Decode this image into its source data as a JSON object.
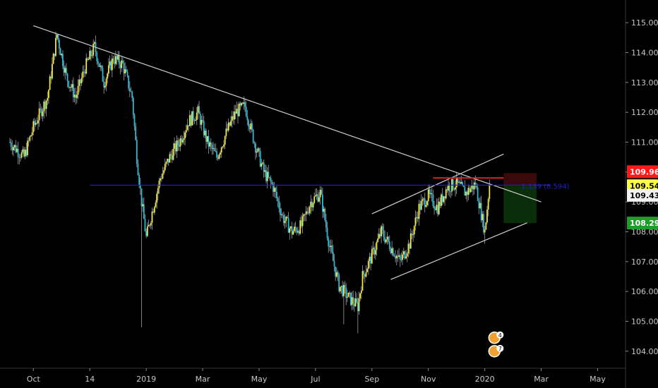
{
  "colors": {
    "background": "#000000",
    "candle_up": "#f5e642",
    "candle_down": "#2fb8d6",
    "wick": "#9aa0a6",
    "trendline": "#d0d0d0",
    "level_line": "#2020c8",
    "resistance_line": "#e02020",
    "stop_zone": "#3a0a0a",
    "target_zone": "#0a2e0a",
    "badge_red": "#ff1a1a",
    "badge_yellow": "#ffff44",
    "badge_white": "#f2f2f2",
    "badge_green": "#1f9d2a",
    "event_icon": "#f0a030"
  },
  "chart_data": {
    "type": "candlestick",
    "y_axis": {
      "min": 103.5,
      "max": 115.5,
      "ticks": [
        "115.000",
        "114.000",
        "113.000",
        "112.000",
        "111.000",
        "110.000",
        "109.000",
        "108.000",
        "107.000",
        "106.000",
        "105.000",
        "104.000"
      ],
      "tick_values": [
        115,
        114,
        113,
        112,
        111,
        110,
        109,
        108,
        107,
        106,
        105,
        104
      ]
    },
    "x_axis": {
      "labels": [
        "Oct",
        "14",
        "2019",
        "Mar",
        "May",
        "Jul",
        "Sep",
        "Nov",
        "2020",
        "Mar",
        "May"
      ],
      "label_index": [
        5,
        17,
        29,
        41,
        53,
        65,
        77,
        89,
        101,
        113,
        125
      ]
    },
    "price_path": [
      [
        0,
        111.0
      ],
      [
        3,
        110.5
      ],
      [
        5,
        111.5
      ],
      [
        8,
        112.5
      ],
      [
        10,
        114.6
      ],
      [
        12,
        113.2
      ],
      [
        14,
        112.5
      ],
      [
        16,
        113.5
      ],
      [
        18,
        114.2
      ],
      [
        20,
        113.0
      ],
      [
        22,
        113.8
      ],
      [
        24,
        113.6
      ],
      [
        26,
        112.5
      ],
      [
        27,
        110.5
      ],
      [
        28,
        109.0
      ],
      [
        29,
        107.8
      ],
      [
        30,
        108.5
      ],
      [
        32,
        109.8
      ],
      [
        34,
        110.5
      ],
      [
        36,
        111.0
      ],
      [
        38,
        111.7
      ],
      [
        40,
        112.0
      ],
      [
        42,
        111.0
      ],
      [
        44,
        110.5
      ],
      [
        46,
        111.3
      ],
      [
        48,
        112.0
      ],
      [
        50,
        112.2
      ],
      [
        52,
        111.0
      ],
      [
        54,
        110.0
      ],
      [
        56,
        109.5
      ],
      [
        58,
        108.5
      ],
      [
        60,
        108.0
      ],
      [
        62,
        108.2
      ],
      [
        64,
        109.0
      ],
      [
        66,
        109.3
      ],
      [
        68,
        107.5
      ],
      [
        70,
        106.2
      ],
      [
        72,
        105.8
      ],
      [
        74,
        105.5
      ],
      [
        75,
        106.5
      ],
      [
        77,
        107.2
      ],
      [
        79,
        108.0
      ],
      [
        81,
        107.5
      ],
      [
        83,
        107.0
      ],
      [
        85,
        107.6
      ],
      [
        87,
        108.8
      ],
      [
        89,
        109.2
      ],
      [
        91,
        108.8
      ],
      [
        93,
        109.5
      ],
      [
        95,
        109.6
      ],
      [
        97,
        109.3
      ],
      [
        99,
        109.6
      ],
      [
        101,
        108.0
      ],
      [
        102,
        109.6
      ]
    ],
    "extreme_wicks": [
      {
        "index": 28,
        "low": 104.8
      },
      {
        "index": 74,
        "low": 104.6
      },
      {
        "index": 71,
        "low": 104.9
      },
      {
        "index": 101,
        "low": 107.6
      }
    ],
    "trendlines": [
      {
        "from": [
          5,
          114.9
        ],
        "to": [
          113,
          109.0
        ]
      },
      {
        "from": [
          77,
          108.6
        ],
        "to": [
          105,
          110.6
        ]
      },
      {
        "from": [
          81,
          106.4
        ],
        "to": [
          110,
          108.3
        ]
      }
    ],
    "horizontal_level": {
      "value": 109.56,
      "from_index": 17,
      "to_index": 115
    },
    "resistance_segment": {
      "value": 109.8,
      "from_index": 90,
      "to_index": 105
    },
    "position_tool": {
      "from_index": 105,
      "to_index": 112,
      "entry": 109.54,
      "stop": 109.964,
      "target": 108.291,
      "label": "1.139 (8.594)"
    },
    "price_badges": [
      {
        "value": 109.964,
        "text": "109.964",
        "style": "red"
      },
      {
        "value": 109.54,
        "text": "109.540",
        "style": "yellow"
      },
      {
        "value": 109.431,
        "text": "109.431",
        "style": "white"
      },
      {
        "value": 108.291,
        "text": "108.291",
        "style": "green"
      }
    ],
    "events": [
      {
        "index": 102,
        "value": 104.45,
        "count": "4"
      },
      {
        "index": 102,
        "value": 104.0,
        "count": "7"
      }
    ],
    "n_bars": 125
  }
}
